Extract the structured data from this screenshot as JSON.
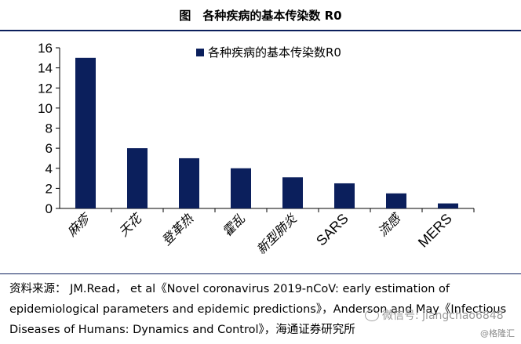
{
  "header": {
    "title": "图　各种疾病的基本传染数 R0"
  },
  "chart_data": {
    "type": "bar",
    "categories": [
      "麻疹",
      "天花",
      "登革热",
      "霍乱",
      "新型肺炎",
      "SARS",
      "流感",
      "MERS"
    ],
    "series": [
      {
        "name": "各种疾病的基本传染数R0",
        "values": [
          15,
          6,
          5,
          4,
          3.1,
          2.5,
          1.5,
          0.5
        ],
        "color": "#0b1f5c"
      }
    ],
    "ylim": [
      0,
      16
    ],
    "yticks": [
      "0",
      "2",
      "4",
      "6",
      "8",
      "10",
      "12",
      "14",
      "16"
    ],
    "xlabel": "",
    "ylabel": "",
    "grid": false,
    "legend_position": "top-center"
  },
  "footer": {
    "source_line1": "资料来源： JM.Read， et al《Novel coronavirus 2019-nCoV: early estimation of",
    "source_line2": "epidemiological parameters and epidemic predictions》，Anderson and May《Infectious",
    "source_line3": "Diseases of Humans: Dynamics and Control》，海通证券研究所"
  },
  "overlay": {
    "wechat_text": "微信号: jiangchao6848",
    "watermark_text": "@格隆汇"
  }
}
